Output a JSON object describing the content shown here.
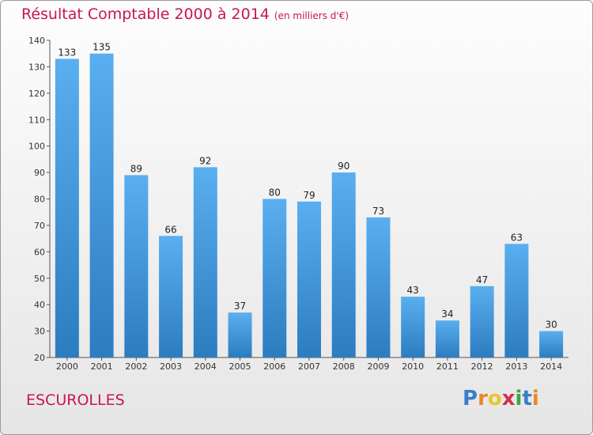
{
  "title": "Résultat Comptable 2000 à 2014",
  "subtitle": "(en milliers d'€)",
  "commune": "ESCUROLLES",
  "logo": {
    "text": "Proxiti",
    "letters": [
      {
        "ch": "P",
        "color": "#3a7ec8"
      },
      {
        "ch": "r",
        "color": "#e8862a"
      },
      {
        "ch": "o",
        "color": "#e8c62a"
      },
      {
        "ch": "x",
        "color": "#d2304a"
      },
      {
        "ch": "i",
        "color": "#3aa84a"
      },
      {
        "ch": "t",
        "color": "#3a7ec8"
      },
      {
        "ch": "i",
        "color": "#e8862a"
      }
    ]
  },
  "colors": {
    "bar_top": "#5aaff0",
    "bar_bottom": "#2c7cc0",
    "title": "#c8184a"
  },
  "chart_data": {
    "type": "bar",
    "categories": [
      "2000",
      "2001",
      "2002",
      "2003",
      "2004",
      "2005",
      "2006",
      "2007",
      "2008",
      "2009",
      "2010",
      "2011",
      "2012",
      "2013",
      "2014"
    ],
    "values": [
      133,
      135,
      89,
      66,
      92,
      37,
      80,
      79,
      90,
      73,
      43,
      34,
      47,
      63,
      30
    ],
    "ylim": [
      20,
      140
    ],
    "yticks": [
      20,
      30,
      40,
      50,
      60,
      70,
      80,
      90,
      100,
      110,
      120,
      130,
      140
    ],
    "grid": false
  }
}
